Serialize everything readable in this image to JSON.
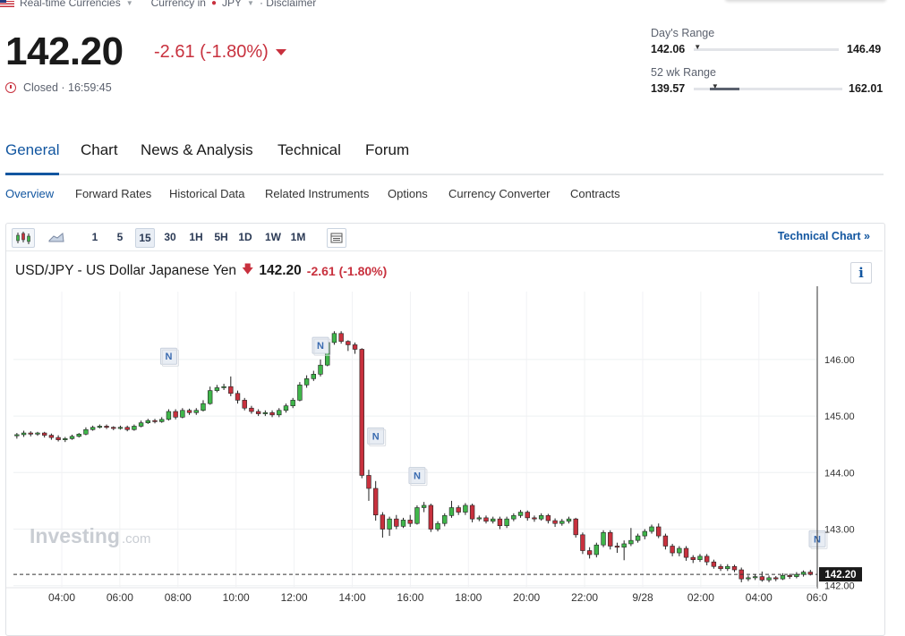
{
  "topbar": {
    "realtime": "Real-time Currencies",
    "currency_in": "Currency in",
    "currency": "JPY",
    "disclaimer": "· Disclaimer"
  },
  "quote": {
    "price": "142.20",
    "change": "-2.61 (-1.80%)",
    "status": "Closed · 16:59:45"
  },
  "day_range": {
    "label": "Day's Range",
    "low": "142.06",
    "high": "146.49",
    "position": 0.02
  },
  "wk52_range": {
    "label": "52 wk Range",
    "low": "139.57",
    "high": "162.01",
    "position": 0.12
  },
  "tabs": [
    "General",
    "Chart",
    "News & Analysis",
    "Technical",
    "Forum"
  ],
  "subtabs": [
    "Overview",
    "Forward Rates",
    "Historical Data",
    "Related Instruments",
    "Options",
    "Currency Converter",
    "Contracts"
  ],
  "toolbar": {
    "intervals": [
      "1",
      "5",
      "15",
      "30",
      "1H",
      "5H",
      "1D",
      "1W",
      "1M"
    ],
    "active_interval": "15",
    "tech_chart": "Technical Chart »"
  },
  "pair": {
    "name": "USD/JPY - US Dollar Japanese Yen",
    "price": "142.20",
    "change": "-2.61 (-1.80%)"
  },
  "info_label": "i",
  "watermark": {
    "brand": "Investing",
    "suffix": ".com"
  },
  "colors": {
    "up": "#3fb64a",
    "down": "#c8313e",
    "accent": "#1256a0"
  },
  "chart_data": {
    "type": "candlestick",
    "ylim": [
      141.98,
      147.2
    ],
    "yticks": [
      "146.00",
      "145.00",
      "144.00",
      "143.00",
      "142.00"
    ],
    "xticks": [
      "04:00",
      "06:00",
      "08:00",
      "10:00",
      "12:00",
      "14:00",
      "16:00",
      "18:00",
      "20:00",
      "22:00",
      "9/28",
      "02:00",
      "04:00",
      "06:0"
    ],
    "last_price_label": "142.20",
    "last_price": 142.2,
    "news_markers": [
      {
        "x": 22,
        "price": 145.71
      },
      {
        "x": 44,
        "price": 145.9
      },
      {
        "x": 52,
        "price": 144.3
      },
      {
        "x": 58,
        "price": 143.6
      },
      {
        "x": 116,
        "price": 142.48
      }
    ],
    "candles": [
      [
        144.65,
        144.67,
        144.6,
        144.7
      ],
      [
        144.67,
        144.7,
        144.63,
        144.74
      ],
      [
        144.7,
        144.68,
        144.64,
        144.73
      ],
      [
        144.68,
        144.7,
        144.65,
        144.72
      ],
      [
        144.7,
        144.66,
        144.62,
        144.72
      ],
      [
        144.66,
        144.62,
        144.58,
        144.69
      ],
      [
        144.62,
        144.58,
        144.55,
        144.66
      ],
      [
        144.58,
        144.6,
        144.54,
        144.63
      ],
      [
        144.6,
        144.64,
        144.58,
        144.67
      ],
      [
        144.64,
        144.68,
        144.62,
        144.7
      ],
      [
        144.68,
        144.76,
        144.66,
        144.8
      ],
      [
        144.76,
        144.8,
        144.74,
        144.83
      ],
      [
        144.8,
        144.82,
        144.78,
        144.85
      ],
      [
        144.82,
        144.8,
        144.77,
        144.85
      ],
      [
        144.8,
        144.78,
        144.75,
        144.82
      ],
      [
        144.78,
        144.8,
        144.76,
        144.83
      ],
      [
        144.8,
        144.76,
        144.73,
        144.83
      ],
      [
        144.76,
        144.82,
        144.74,
        144.85
      ],
      [
        144.82,
        144.88,
        144.8,
        144.92
      ],
      [
        144.88,
        144.92,
        144.86,
        144.95
      ],
      [
        144.92,
        144.9,
        144.87,
        144.95
      ],
      [
        144.9,
        144.94,
        144.88,
        144.98
      ],
      [
        144.94,
        145.08,
        144.92,
        145.12
      ],
      [
        145.08,
        144.98,
        144.94,
        145.12
      ],
      [
        144.98,
        145.1,
        144.96,
        145.14
      ],
      [
        145.1,
        145.06,
        145.02,
        145.13
      ],
      [
        145.06,
        145.1,
        145.02,
        145.14
      ],
      [
        145.1,
        145.22,
        145.08,
        145.28
      ],
      [
        145.22,
        145.45,
        145.2,
        145.52
      ],
      [
        145.45,
        145.5,
        145.42,
        145.55
      ],
      [
        145.5,
        145.52,
        145.46,
        145.57
      ],
      [
        145.52,
        145.4,
        145.35,
        145.7
      ],
      [
        145.4,
        145.28,
        145.22,
        145.45
      ],
      [
        145.28,
        145.14,
        145.1,
        145.32
      ],
      [
        145.14,
        145.08,
        145.04,
        145.18
      ],
      [
        145.08,
        145.04,
        145.0,
        145.12
      ],
      [
        145.04,
        145.06,
        145.0,
        145.1
      ],
      [
        145.06,
        145.02,
        144.98,
        145.1
      ],
      [
        145.02,
        145.1,
        144.98,
        145.14
      ],
      [
        145.1,
        145.18,
        145.06,
        145.22
      ],
      [
        145.18,
        145.28,
        145.14,
        145.32
      ],
      [
        145.28,
        145.55,
        145.26,
        145.6
      ],
      [
        145.55,
        145.66,
        145.5,
        145.72
      ],
      [
        145.66,
        145.74,
        145.62,
        145.8
      ],
      [
        145.74,
        145.9,
        145.7,
        146.0
      ],
      [
        145.9,
        146.3,
        145.88,
        146.38
      ],
      [
        146.3,
        146.46,
        146.26,
        146.5
      ],
      [
        146.46,
        146.32,
        146.28,
        146.5
      ],
      [
        146.32,
        146.26,
        146.15,
        146.34
      ],
      [
        146.26,
        146.18,
        146.1,
        146.3
      ],
      [
        146.18,
        143.95,
        143.9,
        146.2
      ],
      [
        143.95,
        143.72,
        143.5,
        144.05
      ],
      [
        143.72,
        143.25,
        143.15,
        143.85
      ],
      [
        143.25,
        143.0,
        142.85,
        143.3
      ],
      [
        143.0,
        143.18,
        142.88,
        143.22
      ],
      [
        143.18,
        143.05,
        143.0,
        143.25
      ],
      [
        143.05,
        143.16,
        143.02,
        143.2
      ],
      [
        143.16,
        143.1,
        143.04,
        143.25
      ],
      [
        143.1,
        143.38,
        143.08,
        143.42
      ],
      [
        143.38,
        143.42,
        143.3,
        143.48
      ],
      [
        143.42,
        143.0,
        142.95,
        143.45
      ],
      [
        143.0,
        143.1,
        142.96,
        143.14
      ],
      [
        143.1,
        143.24,
        143.05,
        143.28
      ],
      [
        143.24,
        143.38,
        143.2,
        143.5
      ],
      [
        143.38,
        143.3,
        143.25,
        143.42
      ],
      [
        143.3,
        143.42,
        143.25,
        143.46
      ],
      [
        143.42,
        143.18,
        143.12,
        143.45
      ],
      [
        143.18,
        143.2,
        143.14,
        143.24
      ],
      [
        143.2,
        143.14,
        143.1,
        143.24
      ],
      [
        143.14,
        143.18,
        143.1,
        143.22
      ],
      [
        143.18,
        143.06,
        143.0,
        143.22
      ],
      [
        143.06,
        143.18,
        143.02,
        143.22
      ],
      [
        143.18,
        143.24,
        143.14,
        143.28
      ],
      [
        143.24,
        143.3,
        143.2,
        143.34
      ],
      [
        143.3,
        143.2,
        143.15,
        143.33
      ],
      [
        143.2,
        143.18,
        143.13,
        143.24
      ],
      [
        143.18,
        143.24,
        143.15,
        143.28
      ],
      [
        143.24,
        143.15,
        143.1,
        143.27
      ],
      [
        143.15,
        143.1,
        143.04,
        143.19
      ],
      [
        143.1,
        143.14,
        143.06,
        143.18
      ],
      [
        143.14,
        143.18,
        143.1,
        143.22
      ],
      [
        143.18,
        142.9,
        142.85,
        143.2
      ],
      [
        142.9,
        142.62,
        142.56,
        142.94
      ],
      [
        142.62,
        142.55,
        142.48,
        142.68
      ],
      [
        142.55,
        142.72,
        142.5,
        142.76
      ],
      [
        142.72,
        142.94,
        142.68,
        142.98
      ],
      [
        142.94,
        142.7,
        142.64,
        142.98
      ],
      [
        142.7,
        142.68,
        142.58,
        142.76
      ],
      [
        142.68,
        142.74,
        142.45,
        142.8
      ],
      [
        142.74,
        142.8,
        142.7,
        143.02
      ],
      [
        142.8,
        142.88,
        142.76,
        142.92
      ],
      [
        142.88,
        142.96,
        142.82,
        143.0
      ],
      [
        142.96,
        143.04,
        142.92,
        143.08
      ],
      [
        143.04,
        142.88,
        142.84,
        143.1
      ],
      [
        142.88,
        142.7,
        142.64,
        142.92
      ],
      [
        142.7,
        142.58,
        142.52,
        142.74
      ],
      [
        142.58,
        142.66,
        142.52,
        142.7
      ],
      [
        142.66,
        142.5,
        142.44,
        142.7
      ],
      [
        142.5,
        142.46,
        142.4,
        142.54
      ],
      [
        142.46,
        142.52,
        142.42,
        142.56
      ],
      [
        142.52,
        142.42,
        142.36,
        142.56
      ],
      [
        142.42,
        142.34,
        142.3,
        142.46
      ],
      [
        142.34,
        142.3,
        142.26,
        142.38
      ],
      [
        142.3,
        142.34,
        142.26,
        142.38
      ],
      [
        142.34,
        142.28,
        142.24,
        142.37
      ],
      [
        142.28,
        142.12,
        142.06,
        142.32
      ],
      [
        142.12,
        142.14,
        142.08,
        142.18
      ],
      [
        142.14,
        142.16,
        142.1,
        142.2
      ],
      [
        142.16,
        142.1,
        142.07,
        142.25
      ],
      [
        142.1,
        142.14,
        142.06,
        142.18
      ],
      [
        142.14,
        142.12,
        142.08,
        142.17
      ],
      [
        142.12,
        142.18,
        142.1,
        142.22
      ],
      [
        142.18,
        142.16,
        142.12,
        142.21
      ],
      [
        142.16,
        142.2,
        142.13,
        142.24
      ],
      [
        142.2,
        142.24,
        142.16,
        142.27
      ],
      [
        142.24,
        142.2,
        142.18,
        142.28
      ]
    ]
  }
}
